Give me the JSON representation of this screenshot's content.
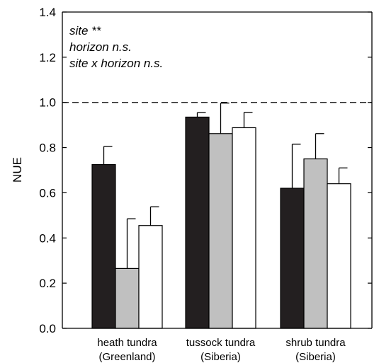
{
  "chart_data": {
    "type": "bar",
    "ylabel": "NUE",
    "ylim": [
      0,
      1.4
    ],
    "yticks": [
      "0.0",
      "0.2",
      "0.4",
      "0.6",
      "0.8",
      "1.0",
      "1.2",
      "1.4"
    ],
    "categories": [
      [
        "heath tundra",
        "(Greenland)"
      ],
      [
        "tussock tundra",
        "(Siberia)"
      ],
      [
        "shrub tundra",
        "(Siberia)"
      ]
    ],
    "series": [
      {
        "color": "#231f20",
        "values": [
          0.725,
          0.935,
          0.62
        ],
        "errors": [
          0.08,
          0.02,
          0.195
        ]
      },
      {
        "color": "#c0c0c0",
        "values": [
          0.265,
          0.862,
          0.75
        ],
        "errors": [
          0.22,
          0.135,
          0.112
        ]
      },
      {
        "color": "#ffffff",
        "values": [
          0.455,
          0.888,
          0.64
        ],
        "errors": [
          0.083,
          0.068,
          0.07
        ]
      }
    ],
    "reference_line": {
      "y": 1.0,
      "style": "dashed"
    },
    "annotations": [
      "site **",
      "horizon n.s.",
      "site x horizon n.s."
    ],
    "grid": false
  }
}
